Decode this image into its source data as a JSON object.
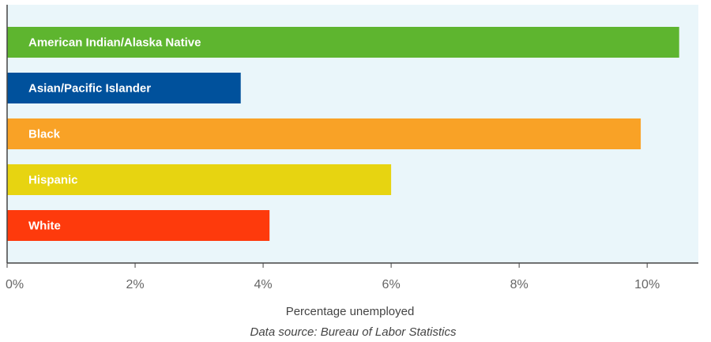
{
  "chart_data": {
    "type": "bar",
    "orientation": "horizontal",
    "categories": [
      "American Indian/Alaska Native",
      "Asian/Pacific Islander",
      "Black",
      "Hispanic",
      "White"
    ],
    "values": [
      10.5,
      3.65,
      9.9,
      6.0,
      4.1
    ],
    "colors": [
      "#5eb52f",
      "#00519c",
      "#f9a226",
      "#e7d411",
      "#fe3a0c"
    ],
    "background_color": "#eaf6fa",
    "xlabel": "Percentage unemployed",
    "xlim": [
      0,
      10.8
    ],
    "xticks": [
      0,
      2,
      4,
      6,
      8,
      10
    ],
    "xtick_labels": [
      "0%",
      "2%",
      "4%",
      "6%",
      "8%",
      "10%"
    ],
    "grid": false,
    "legend": "none",
    "labels_inside_bars": true
  },
  "source_note": "Data source: Bureau of Labor Statistics"
}
